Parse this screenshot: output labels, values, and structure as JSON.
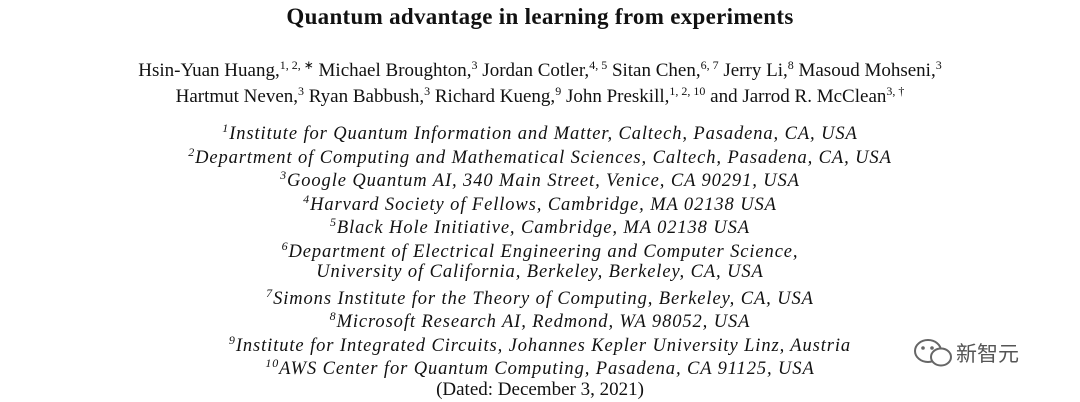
{
  "title": "Quantum advantage in learning from experiments",
  "authors": [
    [
      {
        "name": "Hsin-Yuan Huang,",
        "sup": "1, 2, ∗"
      },
      {
        "name": "Michael Broughton,",
        "sup": "3"
      },
      {
        "name": "Jordan Cotler,",
        "sup": "4, 5"
      },
      {
        "name": "Sitan Chen,",
        "sup": "6, 7"
      },
      {
        "name": "Jerry Li,",
        "sup": "8"
      },
      {
        "name": "Masoud Mohseni,",
        "sup": "3"
      }
    ],
    [
      {
        "name": "Hartmut Neven,",
        "sup": "3"
      },
      {
        "name": "Ryan Babbush,",
        "sup": "3"
      },
      {
        "name": "Richard Kueng,",
        "sup": "9"
      },
      {
        "name": "John Preskill,",
        "sup": "1, 2, 10"
      },
      {
        "name": "and Jarrod R. McClean",
        "sup": "3, †"
      }
    ]
  ],
  "affiliations": [
    {
      "sup": "1",
      "lines": [
        "Institute for Quantum Information and Matter, Caltech, Pasadena, CA, USA"
      ]
    },
    {
      "sup": "2",
      "lines": [
        "Department of Computing and Mathematical Sciences, Caltech, Pasadena, CA, USA"
      ]
    },
    {
      "sup": "3",
      "lines": [
        "Google Quantum AI, 340 Main Street, Venice, CA 90291, USA"
      ]
    },
    {
      "sup": "4",
      "lines": [
        "Harvard Society of Fellows, Cambridge, MA 02138 USA"
      ]
    },
    {
      "sup": "5",
      "lines": [
        "Black Hole Initiative, Cambridge, MA 02138 USA"
      ]
    },
    {
      "sup": "6",
      "lines": [
        "Department of Electrical Engineering and Computer Science,",
        "University of California, Berkeley, Berkeley, CA, USA"
      ]
    },
    {
      "sup": "7",
      "lines": [
        "Simons Institute for the Theory of Computing, Berkeley, CA, USA"
      ]
    },
    {
      "sup": "8",
      "lines": [
        "Microsoft Research AI, Redmond, WA 98052, USA"
      ]
    },
    {
      "sup": "9",
      "lines": [
        "Institute for Integrated Circuits, Johannes Kepler University Linz, Austria"
      ]
    },
    {
      "sup": "10",
      "lines": [
        "AWS Center for Quantum Computing, Pasadena, CA 91125, USA"
      ]
    }
  ],
  "date": "(Dated: December 3, 2021)",
  "watermark": "新智元"
}
